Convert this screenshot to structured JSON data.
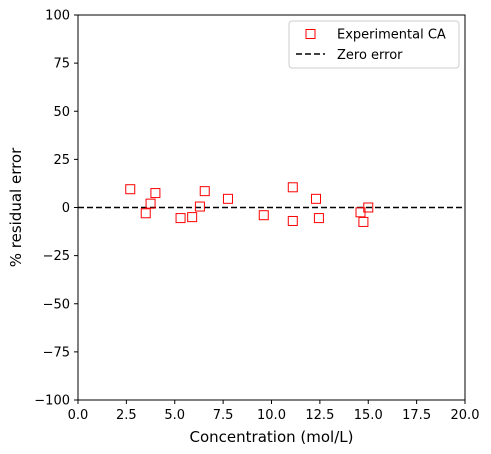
{
  "chart_data": {
    "type": "scatter",
    "title": "",
    "xlabel": "Concentration (mol/L)",
    "ylabel": "% residual error",
    "xlim": [
      0.0,
      20.0
    ],
    "ylim": [
      -100,
      100
    ],
    "xticks": [
      "0.0",
      "2.5",
      "5.0",
      "7.5",
      "10.0",
      "12.5",
      "15.0",
      "17.5",
      "20.0"
    ],
    "yticks": [
      "−100",
      "−75",
      "−50",
      "−25",
      "0",
      "25",
      "50",
      "75",
      "100"
    ],
    "grid": false,
    "legend_position": "top-right",
    "series": [
      {
        "name": "Experimental CA",
        "marker": "square-open",
        "color": "#ff0000",
        "points": [
          {
            "x": 2.7,
            "y": 9.5
          },
          {
            "x": 3.5,
            "y": -3.0
          },
          {
            "x": 3.75,
            "y": 2.0
          },
          {
            "x": 4.0,
            "y": 7.5
          },
          {
            "x": 5.3,
            "y": -5.5
          },
          {
            "x": 5.9,
            "y": -5.0
          },
          {
            "x": 6.3,
            "y": 0.5
          },
          {
            "x": 6.55,
            "y": 8.5
          },
          {
            "x": 7.75,
            "y": 4.5
          },
          {
            "x": 9.6,
            "y": -4.0
          },
          {
            "x": 11.1,
            "y": 10.5
          },
          {
            "x": 11.1,
            "y": -7.0
          },
          {
            "x": 12.3,
            "y": 4.5
          },
          {
            "x": 12.45,
            "y": -5.5
          },
          {
            "x": 14.6,
            "y": -2.5
          },
          {
            "x": 14.75,
            "y": -7.5
          },
          {
            "x": 15.0,
            "y": 0.0
          }
        ]
      },
      {
        "name": "Zero error",
        "line_style": "dashed",
        "color": "#000000",
        "y": 0
      }
    ]
  }
}
